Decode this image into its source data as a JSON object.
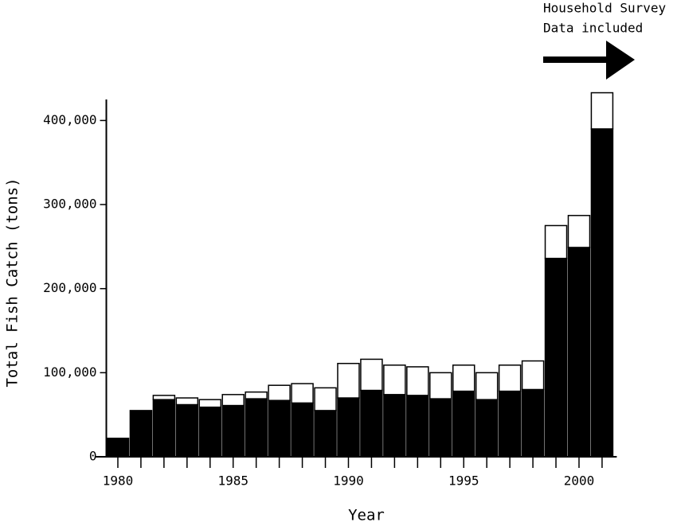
{
  "chart_data": {
    "type": "stacked_bar",
    "y_label": "Total Fish Catch (tons)",
    "x_label": "Year",
    "annotation": {
      "lines": [
        "Household Survey",
        "Data included"
      ]
    },
    "categories": [
      "1980",
      null,
      null,
      null,
      null,
      "1985",
      null,
      null,
      null,
      null,
      "1990",
      null,
      null,
      null,
      null,
      "1995",
      null,
      null,
      null,
      null,
      "2000",
      null
    ],
    "series": [
      {
        "color": "#000000",
        "values": [
          22000,
          55000,
          68000,
          62000,
          59000,
          61000,
          69000,
          67000,
          64000,
          55000,
          70000,
          79000,
          74000,
          73000,
          69000,
          78000,
          68000,
          78000,
          80000,
          236000,
          249000,
          390000
        ]
      },
      {
        "color": "#ffffff",
        "values": [
          0,
          0,
          5000,
          8000,
          9000,
          13000,
          8000,
          18000,
          23000,
          27000,
          41000,
          37000,
          35000,
          34000,
          31000,
          31000,
          32000,
          31000,
          34000,
          39000,
          38000,
          43000
        ]
      }
    ],
    "ylim": [
      0,
      425000
    ],
    "yticks": [
      0,
      {
        "value": 100000,
        "label": "100,000"
      },
      {
        "value": 200000,
        "label": "200,000"
      },
      {
        "value": 300000,
        "label": "300,000"
      },
      {
        "value": 400000,
        "label": "400,000"
      }
    ]
  }
}
